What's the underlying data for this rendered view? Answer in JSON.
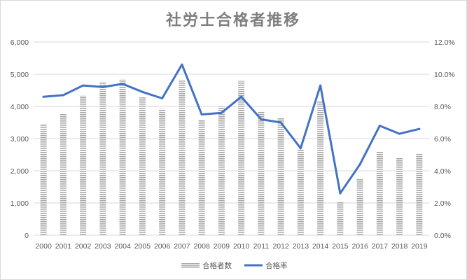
{
  "chart_data": {
    "type": "bar+line",
    "title": "社労士合格者推移",
    "categories": [
      "2000",
      "2001",
      "2002",
      "2003",
      "2004",
      "2005",
      "2006",
      "2007",
      "2008",
      "2009",
      "2010",
      "2011",
      "2012",
      "2013",
      "2014",
      "2015",
      "2016",
      "2017",
      "2018",
      "2019"
    ],
    "series": [
      {
        "name": "合格者数",
        "type": "bar",
        "axis": "left",
        "values": [
          3450,
          3770,
          4330,
          4770,
          4840,
          4280,
          3930,
          4800,
          3570,
          4000,
          4790,
          3860,
          3630,
          2660,
          4150,
          1050,
          1770,
          2610,
          2410,
          2520
        ]
      },
      {
        "name": "合格率",
        "type": "line",
        "axis": "right",
        "values": [
          8.6,
          8.7,
          9.3,
          9.2,
          9.4,
          8.9,
          8.5,
          10.6,
          7.5,
          7.6,
          8.6,
          7.2,
          7.0,
          5.4,
          9.3,
          2.6,
          4.4,
          6.8,
          6.3,
          6.6
        ]
      }
    ],
    "yleft": {
      "lim": [
        0,
        6000
      ],
      "ticks": [
        "0",
        "1,000",
        "2,000",
        "3,000",
        "4,000",
        "5,000",
        "6,000"
      ]
    },
    "yright": {
      "lim": [
        0,
        12
      ],
      "ticks": [
        "0.0%",
        "2.0%",
        "4.0%",
        "6.0%",
        "8.0%",
        "10.0%",
        "12.0%"
      ]
    },
    "grid": true,
    "legend": "bottom",
    "colors": {
      "bar": "#a6a6a6",
      "line": "#4472c4",
      "grid": "#d9d9d9",
      "text": "#595959",
      "title": "#7f7f7f"
    }
  }
}
